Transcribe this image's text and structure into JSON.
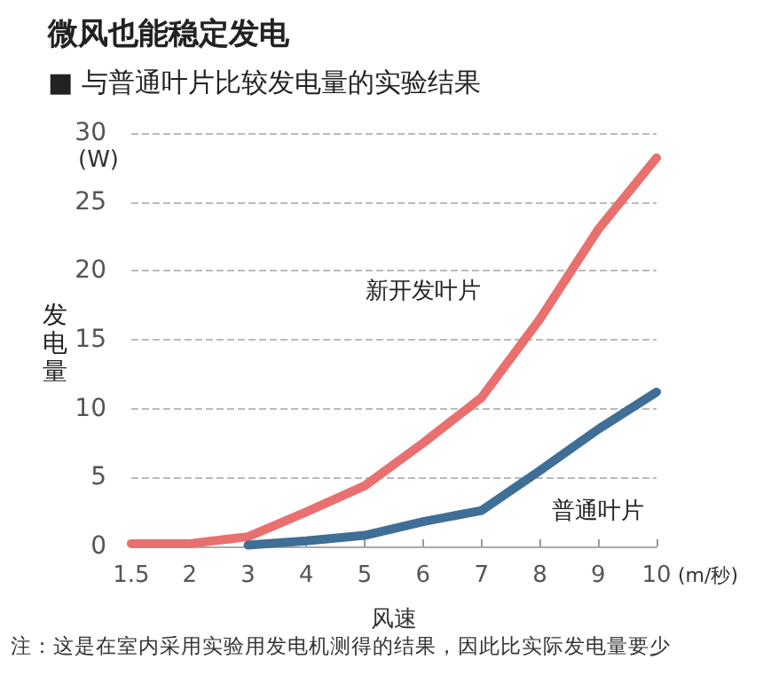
{
  "chart_data": {
    "type": "line",
    "title": "微风也能稳定发电",
    "subtitle": "■ 与普通叶片比较发电量的实验结果",
    "xlabel": "风速",
    "ylabel": "发电量",
    "annotations": [
      "(W)",
      "(m/秒)",
      "注：这是在室内采用实验用发电机测得的结果，因此比实际发电量要少"
    ],
    "categories": [
      "1.5",
      "2",
      "3",
      "4",
      "5",
      "6",
      "7",
      "8",
      "9",
      "10"
    ],
    "series": [
      {
        "name": "新开发叶片",
        "color": "#e8706f",
        "values": [
          0.2,
          0.2,
          0.7,
          2.5,
          4.4,
          7.5,
          10.8,
          16.5,
          23,
          28.2
        ]
      },
      {
        "name": "普通叶片",
        "color": "#3f6e96",
        "values": [
          null,
          null,
          0.1,
          0.4,
          0.8,
          1.8,
          2.6,
          5.5,
          8.5,
          11.2
        ]
      }
    ],
    "ylim": [
      0,
      30
    ],
    "yticks": [
      0,
      5,
      10,
      15,
      20,
      25,
      30
    ],
    "grid": "y",
    "legend": false,
    "marker": "none",
    "line_style": "solid"
  }
}
